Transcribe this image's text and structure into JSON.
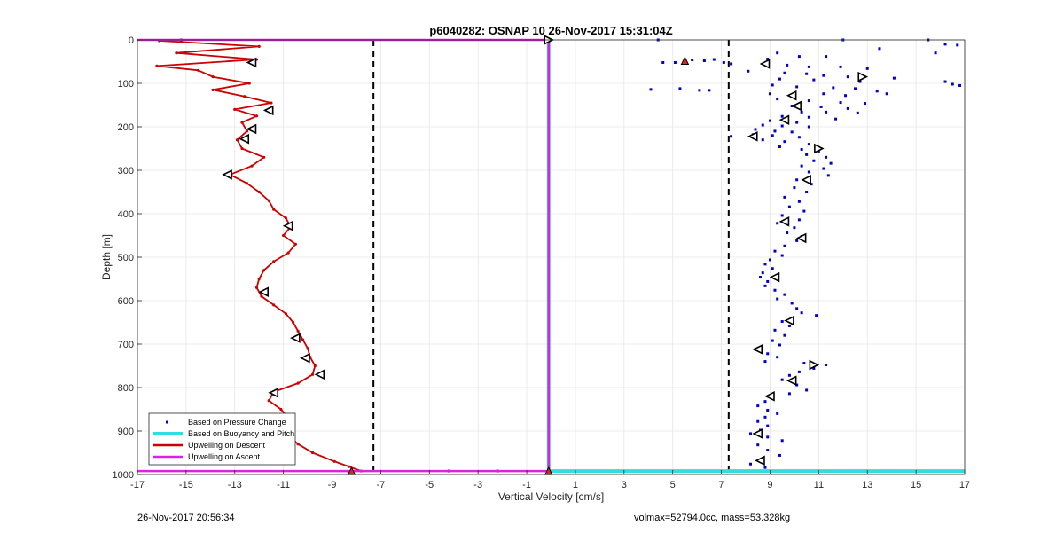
{
  "chart_data": {
    "type": "scatter",
    "title": "p6040282: OSNAP 10 26-Nov-2017 15:31:04Z",
    "xlabel": "Vertical Velocity [cm/s]",
    "ylabel": "Depth [m]",
    "xlim": [
      -17,
      17
    ],
    "ylim": [
      0,
      1000
    ],
    "y_reversed": true,
    "grid": true,
    "x_ticks": [
      -17,
      -15,
      -13,
      -11,
      -9,
      -7,
      -5,
      -3,
      -1,
      1,
      3,
      5,
      7,
      9,
      11,
      13,
      15,
      17
    ],
    "y_ticks": [
      0,
      100,
      200,
      300,
      400,
      500,
      600,
      700,
      800,
      900,
      1000
    ],
    "legend_position": "bottom-left",
    "series": [
      {
        "name": "Based on Pressure Change",
        "style": "markers",
        "color": "#0000cc",
        "points": [
          [
            4.4,
            0
          ],
          [
            12.0,
            0
          ],
          [
            15.5,
            0
          ],
          [
            16.2,
            10
          ],
          [
            16.7,
            12
          ],
          [
            13.5,
            20
          ],
          [
            15.8,
            30
          ],
          [
            9.3,
            30
          ],
          [
            10.2,
            38
          ],
          [
            11.3,
            38
          ],
          [
            6.7,
            45
          ],
          [
            8.9,
            44
          ],
          [
            4.6,
            52
          ],
          [
            5.1,
            52
          ],
          [
            5.8,
            46
          ],
          [
            6.3,
            48
          ],
          [
            7.1,
            52
          ],
          [
            7.4,
            55
          ],
          [
            9.7,
            58
          ],
          [
            10.6,
            62
          ],
          [
            11.9,
            62
          ],
          [
            13.0,
            66
          ],
          [
            8.1,
            72
          ],
          [
            9.6,
            76
          ],
          [
            10.5,
            78
          ],
          [
            11.2,
            82
          ],
          [
            12.2,
            85
          ],
          [
            14.1,
            88
          ],
          [
            9.4,
            90
          ],
          [
            10.8,
            92
          ],
          [
            12.7,
            96
          ],
          [
            16.2,
            96
          ],
          [
            16.5,
            102
          ],
          [
            16.8,
            105
          ],
          [
            4.1,
            114
          ],
          [
            5.3,
            112
          ],
          [
            6.1,
            116
          ],
          [
            6.5,
            116
          ],
          [
            9.1,
            104
          ],
          [
            10.1,
            108
          ],
          [
            11.6,
            110
          ],
          [
            12.5,
            112
          ],
          [
            13.4,
            118
          ],
          [
            9.0,
            124
          ],
          [
            10.0,
            126
          ],
          [
            11.2,
            124
          ],
          [
            12.1,
            128
          ],
          [
            13.8,
            124
          ],
          [
            9.3,
            136
          ],
          [
            10.6,
            140
          ],
          [
            11.9,
            144
          ],
          [
            12.9,
            146
          ],
          [
            9.9,
            152
          ],
          [
            11.1,
            154
          ],
          [
            12.2,
            158
          ],
          [
            10.3,
            166
          ],
          [
            11.3,
            166
          ],
          [
            12.6,
            168
          ],
          [
            9.5,
            176
          ],
          [
            10.6,
            178
          ],
          [
            11.7,
            182
          ],
          [
            9.0,
            186
          ],
          [
            10.1,
            190
          ],
          [
            8.7,
            196
          ],
          [
            9.5,
            198
          ],
          [
            10.6,
            200
          ],
          [
            8.4,
            206
          ],
          [
            9.2,
            210
          ],
          [
            9.9,
            212
          ],
          [
            7.4,
            222
          ],
          [
            8.3,
            218
          ],
          [
            9.1,
            220
          ],
          [
            10.2,
            224
          ],
          [
            8.7,
            230
          ],
          [
            9.6,
            234
          ],
          [
            10.6,
            240
          ],
          [
            9.4,
            246
          ],
          [
            10.3,
            252
          ],
          [
            11.0,
            256
          ],
          [
            10.5,
            264
          ],
          [
            11.3,
            270
          ],
          [
            10.8,
            278
          ],
          [
            11.5,
            284
          ],
          [
            10.3,
            290
          ],
          [
            11.2,
            296
          ],
          [
            10.6,
            304
          ],
          [
            11.4,
            312
          ],
          [
            10.1,
            322
          ],
          [
            10.7,
            332
          ],
          [
            10.0,
            340
          ],
          [
            10.5,
            350
          ],
          [
            9.6,
            362
          ],
          [
            10.2,
            372
          ],
          [
            9.8,
            384
          ],
          [
            10.4,
            394
          ],
          [
            9.5,
            404
          ],
          [
            10.2,
            414
          ],
          [
            9.3,
            422
          ],
          [
            10.0,
            432
          ],
          [
            9.7,
            444
          ],
          [
            10.3,
            452
          ],
          [
            10.1,
            462
          ],
          [
            9.6,
            474
          ],
          [
            9.2,
            486
          ],
          [
            9.5,
            496
          ],
          [
            9.0,
            506
          ],
          [
            8.8,
            516
          ],
          [
            9.1,
            526
          ],
          [
            8.7,
            536
          ],
          [
            8.6,
            546
          ],
          [
            8.9,
            556
          ],
          [
            8.8,
            566
          ],
          [
            9.2,
            576
          ],
          [
            9.6,
            586
          ],
          [
            9.3,
            596
          ],
          [
            9.9,
            606
          ],
          [
            10.1,
            618
          ],
          [
            10.3,
            628
          ],
          [
            10.9,
            634
          ],
          [
            9.9,
            640
          ],
          [
            9.5,
            648
          ],
          [
            9.8,
            658
          ],
          [
            9.2,
            668
          ],
          [
            9.6,
            680
          ],
          [
            9.1,
            692
          ],
          [
            9.4,
            702
          ],
          [
            8.4,
            712
          ],
          [
            8.9,
            722
          ],
          [
            9.3,
            730
          ],
          [
            8.8,
            740
          ],
          [
            10.4,
            744
          ],
          [
            11.3,
            748
          ],
          [
            10.8,
            756
          ],
          [
            10.2,
            764
          ],
          [
            9.8,
            772
          ],
          [
            9.5,
            782
          ],
          [
            10.1,
            794
          ],
          [
            10.5,
            806
          ],
          [
            9.8,
            814
          ],
          [
            9.1,
            822
          ],
          [
            8.8,
            832
          ],
          [
            8.5,
            842
          ],
          [
            8.9,
            852
          ],
          [
            9.3,
            860
          ],
          [
            8.8,
            868
          ],
          [
            8.5,
            878
          ],
          [
            8.9,
            888
          ],
          [
            8.6,
            898
          ],
          [
            8.2,
            906
          ],
          [
            8.9,
            914
          ],
          [
            9.5,
            922
          ],
          [
            8.5,
            932
          ],
          [
            8.9,
            944
          ],
          [
            9.4,
            956
          ],
          [
            8.7,
            966
          ],
          [
            8.2,
            976
          ],
          [
            8.8,
            984
          ],
          [
            -15.2,
            0
          ],
          [
            -4.2,
            992
          ],
          [
            -2.2,
            992
          ],
          [
            3.3,
            992
          ],
          [
            5.4,
            992
          ],
          [
            6.8,
            992
          ]
        ]
      },
      {
        "name": "Based on Buoyancy and Pitch",
        "style": "line",
        "color": "#33dddd",
        "points": [
          [
            -0.1,
            0
          ],
          [
            -0.1,
            992
          ],
          [
            17,
            992
          ]
        ]
      },
      {
        "name": "Upwelling on Descent",
        "style": "line",
        "color": "#cc0000",
        "points": [
          [
            -16.1,
            2
          ],
          [
            -12.0,
            15
          ],
          [
            -15.4,
            30
          ],
          [
            -12.1,
            45
          ],
          [
            -16.2,
            60
          ],
          [
            -14.5,
            70
          ],
          [
            -13.9,
            85
          ],
          [
            -12.4,
            100
          ],
          [
            -13.9,
            115
          ],
          [
            -12.6,
            130
          ],
          [
            -11.5,
            145
          ],
          [
            -13.0,
            160
          ],
          [
            -12.1,
            175
          ],
          [
            -12.7,
            190
          ],
          [
            -12.5,
            210
          ],
          [
            -12.9,
            230
          ],
          [
            -12.7,
            250
          ],
          [
            -11.8,
            270
          ],
          [
            -12.3,
            290
          ],
          [
            -13.2,
            310
          ],
          [
            -12.5,
            330
          ],
          [
            -12.0,
            350
          ],
          [
            -11.6,
            370
          ],
          [
            -11.4,
            390
          ],
          [
            -10.9,
            410
          ],
          [
            -10.7,
            430
          ],
          [
            -11.0,
            450
          ],
          [
            -10.5,
            470
          ],
          [
            -10.8,
            490
          ],
          [
            -11.4,
            510
          ],
          [
            -11.8,
            530
          ],
          [
            -12.0,
            550
          ],
          [
            -12.1,
            570
          ],
          [
            -11.9,
            590
          ],
          [
            -11.4,
            610
          ],
          [
            -10.9,
            630
          ],
          [
            -10.6,
            650
          ],
          [
            -10.4,
            670
          ],
          [
            -10.2,
            690
          ],
          [
            -10.0,
            710
          ],
          [
            -9.9,
            730
          ],
          [
            -9.7,
            750
          ],
          [
            -9.8,
            770
          ],
          [
            -10.4,
            790
          ],
          [
            -11.4,
            810
          ],
          [
            -11.6,
            830
          ],
          [
            -11.1,
            850
          ],
          [
            -10.8,
            870
          ],
          [
            -11.2,
            890
          ],
          [
            -10.8,
            910
          ],
          [
            -10.4,
            930
          ],
          [
            -9.8,
            950
          ],
          [
            -8.9,
            970
          ],
          [
            -8.3,
            982
          ],
          [
            -7.8,
            992
          ]
        ]
      },
      {
        "name": "Upwelling on Ascent",
        "style": "line",
        "color": "#dd22dd",
        "points": [
          [
            -17,
            0
          ],
          [
            -0.1,
            0
          ],
          [
            -0.1,
            992
          ],
          [
            -17,
            992
          ]
        ]
      }
    ],
    "reference_lines": [
      {
        "x": -7.3,
        "style": "dashed",
        "color": "#000000"
      },
      {
        "x": 7.3,
        "style": "dashed",
        "color": "#000000"
      }
    ],
    "triangle_markers": [
      {
        "x": -12.3,
        "y": 52,
        "dir": "left"
      },
      {
        "x": -11.6,
        "y": 162,
        "dir": "left"
      },
      {
        "x": -12.3,
        "y": 205,
        "dir": "left"
      },
      {
        "x": -12.6,
        "y": 228,
        "dir": "left"
      },
      {
        "x": -13.3,
        "y": 310,
        "dir": "left"
      },
      {
        "x": -10.8,
        "y": 428,
        "dir": "left"
      },
      {
        "x": -11.8,
        "y": 580,
        "dir": "left"
      },
      {
        "x": -10.5,
        "y": 686,
        "dir": "left"
      },
      {
        "x": -10.1,
        "y": 732,
        "dir": "left"
      },
      {
        "x": -9.5,
        "y": 770,
        "dir": "left"
      },
      {
        "x": -11.4,
        "y": 812,
        "dir": "left"
      },
      {
        "x": -10.8,
        "y": 893,
        "dir": "left"
      },
      {
        "x": 8.3,
        "y": 222,
        "dir": "left"
      },
      {
        "x": 8.8,
        "y": 55,
        "dir": "left"
      },
      {
        "x": 9.9,
        "y": 128,
        "dir": "left"
      },
      {
        "x": 10.1,
        "y": 152,
        "dir": "left"
      },
      {
        "x": 9.6,
        "y": 184,
        "dir": "left"
      },
      {
        "x": 12.8,
        "y": 85,
        "dir": "right"
      },
      {
        "x": 11.0,
        "y": 250,
        "dir": "right"
      },
      {
        "x": 10.5,
        "y": 322,
        "dir": "left"
      },
      {
        "x": 9.6,
        "y": 418,
        "dir": "left"
      },
      {
        "x": 10.3,
        "y": 456,
        "dir": "left"
      },
      {
        "x": 9.2,
        "y": 546,
        "dir": "left"
      },
      {
        "x": 9.8,
        "y": 646,
        "dir": "left"
      },
      {
        "x": 8.5,
        "y": 712,
        "dir": "left"
      },
      {
        "x": 10.8,
        "y": 748,
        "dir": "right"
      },
      {
        "x": 9.9,
        "y": 784,
        "dir": "left"
      },
      {
        "x": 9.0,
        "y": 820,
        "dir": "left"
      },
      {
        "x": 8.5,
        "y": 906,
        "dir": "left"
      },
      {
        "x": 8.6,
        "y": 968,
        "dir": "left"
      },
      {
        "x": -0.1,
        "y": 0,
        "dir": "right"
      }
    ],
    "red_markers": [
      {
        "x": 5.5,
        "y": 48,
        "shape": "up-triangle"
      },
      {
        "x": -0.1,
        "y": 992,
        "shape": "up-triangle"
      },
      {
        "x": -8.2,
        "y": 992,
        "shape": "up-triangle"
      }
    ]
  },
  "footer": {
    "timestamp": "26-Nov-2017 20:56:34",
    "specs": "volmax=52794.0cc, mass=53.328kg"
  }
}
